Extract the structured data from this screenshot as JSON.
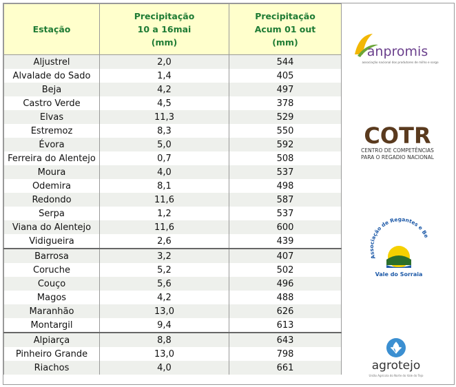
{
  "table": {
    "header": [
      [
        "Estação"
      ],
      [
        "Precipitação",
        "10 a 16mai",
        "(mm)"
      ],
      [
        "Precipitação",
        "Acum 01 out",
        "(mm)"
      ]
    ],
    "groups": [
      [
        [
          "Aljustrel",
          "2,0",
          "544"
        ],
        [
          "Alvalade do Sado",
          "1,4",
          "405"
        ],
        [
          "Beja",
          "4,2",
          "497"
        ],
        [
          "Castro Verde",
          "4,5",
          "378"
        ],
        [
          "Elvas",
          "11,3",
          "529"
        ],
        [
          "Estremoz",
          "8,3",
          "550"
        ],
        [
          "Évora",
          "5,0",
          "592"
        ],
        [
          "Ferreira do Alentejo",
          "0,7",
          "508"
        ],
        [
          "Moura",
          "4,0",
          "537"
        ],
        [
          "Odemira",
          "8,1",
          "498"
        ],
        [
          "Redondo",
          "11,6",
          "587"
        ],
        [
          "Serpa",
          "1,2",
          "537"
        ],
        [
          "Viana do Alentejo",
          "11,6",
          "600"
        ],
        [
          "Vidigueira",
          "2,6",
          "439"
        ]
      ],
      [
        [
          "Barrosa",
          "3,2",
          "407"
        ],
        [
          "Coruche",
          "5,2",
          "502"
        ],
        [
          "Couço",
          "5,6",
          "496"
        ],
        [
          "Magos",
          "4,2",
          "488"
        ],
        [
          "Maranhão",
          "13,0",
          "626"
        ],
        [
          "Montargil",
          "9,4",
          "613"
        ]
      ],
      [
        [
          "Alpiarça",
          "8,8",
          "643"
        ],
        [
          "Pinheiro Grande",
          "13,0",
          "798"
        ],
        [
          "Riachos",
          "4,0",
          "661"
        ]
      ]
    ]
  },
  "logos": {
    "anpromis": {
      "name": "anpromis",
      "tagline": "associação nacional dos produtores de milho e sorgo"
    },
    "cotr": {
      "name": "COTR",
      "line1": "CENTRO DE COMPETÊNCIAS",
      "line2": "PARA O REGADIO NACIONAL"
    },
    "sorraia": {
      "arc": "Associação de Regantes e Beneficiários do",
      "name": "Vale do Sorraia"
    },
    "agrotejo": {
      "name": "agrotejo",
      "tagline": "União Agrícola do Norte do Vale do Tejo"
    }
  }
}
